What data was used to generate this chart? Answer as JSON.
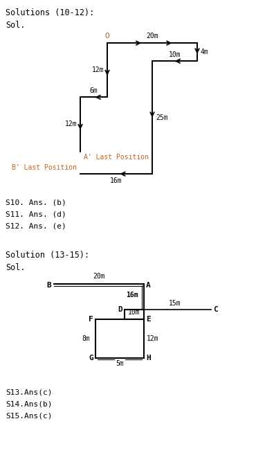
{
  "title1": "Solutions (10-12):",
  "sol1": "Sol.",
  "answers1": [
    "S10. Ans. (b)",
    "S11. Ans. (d)",
    "S12. Ans. (e)"
  ],
  "title2": "Solution (13-15):",
  "sol2": "Sol.",
  "answers2": [
    "S13.Ans(c)",
    "S14.Ans(b)",
    "S15.Ans(c)"
  ],
  "orange": "#c8621c",
  "black": "#1a1a1a"
}
